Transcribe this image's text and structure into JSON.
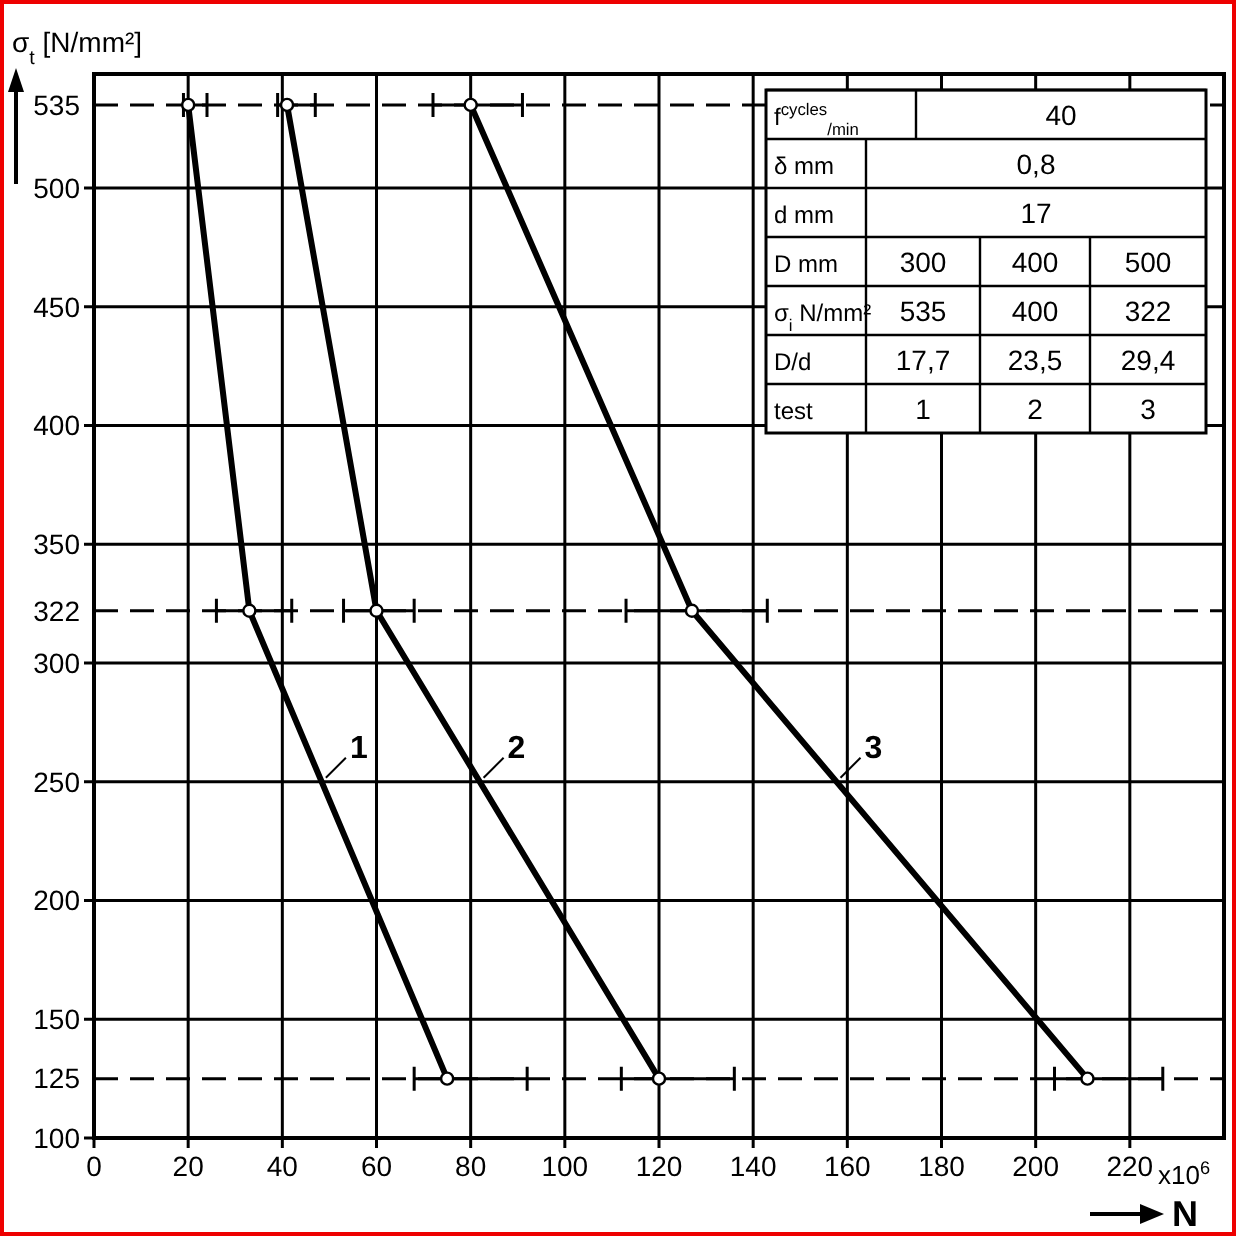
{
  "chart_data": {
    "type": "line",
    "ylabel": "σ$_{t}$ [N/mm²]",
    "xlabel": "N",
    "xlim": [
      0,
      240
    ],
    "xticks": [
      0,
      20,
      40,
      60,
      80,
      100,
      120,
      140,
      160,
      180,
      200,
      220
    ],
    "ylim": [
      100,
      548
    ],
    "yticks": [
      100,
      150,
      200,
      250,
      300,
      350,
      400,
      450,
      500
    ],
    "grid": true,
    "marker": "circle",
    "line_style": "solid",
    "series": [
      {
        "color": "#000000",
        "x": [
          20,
          33,
          75
        ],
        "values": [
          535,
          322,
          125
        ],
        "xerrors": [
          [
            19,
            24
          ],
          [
            26,
            42
          ],
          [
            68,
            92
          ]
        ]
      },
      {
        "color": "#000000",
        "x": [
          41,
          60,
          120
        ],
        "values": [
          535,
          322,
          125
        ],
        "xerrors": [
          [
            39,
            47
          ],
          [
            53,
            68
          ],
          [
            112,
            136
          ]
        ]
      },
      {
        "color": "#000000",
        "x": [
          80,
          127,
          211
        ],
        "values": [
          535,
          322,
          125
        ],
        "xerrors": [
          [
            72,
            91
          ],
          [
            113,
            143
          ],
          [
            204,
            227
          ]
        ]
      }
    ],
    "ref_lines": [
      {
        "axis": "y",
        "value": 535,
        "label": "535",
        "line_style": "dashed"
      },
      {
        "axis": "y",
        "value": 322,
        "label": "322",
        "line_style": "dashed"
      },
      {
        "axis": "y",
        "value": 125,
        "label": "125",
        "line_style": "dashed"
      }
    ],
    "annotations": [
      "x10$^{6}$",
      "f$^{cycles}$$_{/min}$",
      "40",
      "δ mm",
      "0,8",
      "d mm",
      "17",
      "D mm",
      "300",
      "400",
      "500",
      "σ$_{i}$ N/mm²",
      "535",
      "400",
      "322",
      "D/d",
      "17,7",
      "23,5",
      "29,4",
      "test",
      "1",
      "2",
      "3",
      {
        "text": "1",
        "x": 48.4,
        "y": 250
      },
      {
        "text": "2",
        "x": 81.9,
        "y": 250
      },
      {
        "text": "3",
        "x": 157.7,
        "y": 250
      }
    ]
  }
}
